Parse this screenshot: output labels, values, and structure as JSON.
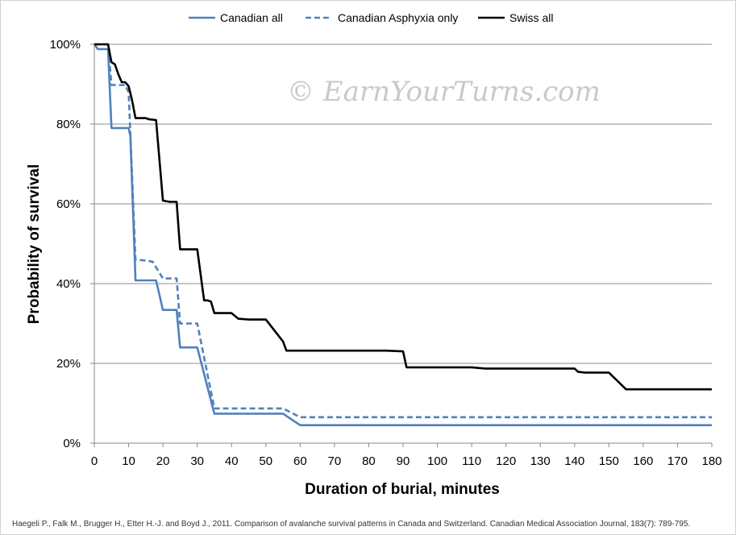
{
  "chart_data": {
    "type": "line",
    "title": "",
    "xlabel": "Duration of burial, minutes",
    "ylabel": "Probability of survival",
    "xlim": [
      0,
      180
    ],
    "ylim": [
      0,
      100
    ],
    "x_ticks": [
      0,
      10,
      20,
      30,
      40,
      50,
      60,
      70,
      80,
      90,
      100,
      110,
      120,
      130,
      140,
      150,
      160,
      170,
      180
    ],
    "y_ticks": [
      0,
      20,
      40,
      60,
      80,
      100
    ],
    "y_tick_labels": [
      "0%",
      "20%",
      "40%",
      "60%",
      "80%",
      "100%"
    ],
    "grid": "horizontal",
    "legend_position": "top",
    "series": [
      {
        "name": "Canadian all",
        "color": "#4f81bd",
        "style": "solid",
        "points": [
          [
            0,
            100
          ],
          [
            1,
            98.8
          ],
          [
            4,
            98.8
          ],
          [
            5,
            79
          ],
          [
            10,
            79
          ],
          [
            10.5,
            77
          ],
          [
            12,
            40.8
          ],
          [
            18,
            40.8
          ],
          [
            20,
            33.4
          ],
          [
            24,
            33.4
          ],
          [
            25,
            24
          ],
          [
            30,
            24
          ],
          [
            35,
            7.4
          ],
          [
            55,
            7.4
          ],
          [
            60,
            4.5
          ],
          [
            180,
            4.5
          ]
        ]
      },
      {
        "name": "Canadian Asphyxia only",
        "color": "#4f81bd",
        "style": "dashed",
        "points": [
          [
            0,
            100
          ],
          [
            4,
            100
          ],
          [
            5,
            89.8
          ],
          [
            9,
            89.8
          ],
          [
            10,
            88
          ],
          [
            12,
            46
          ],
          [
            15,
            45.8
          ],
          [
            17,
            45.5
          ],
          [
            20,
            41.3
          ],
          [
            24,
            41.3
          ],
          [
            25,
            30
          ],
          [
            30,
            30
          ],
          [
            35,
            8.7
          ],
          [
            55,
            8.7
          ],
          [
            60,
            6.5
          ],
          [
            180,
            6.5
          ]
        ]
      },
      {
        "name": "Swiss all",
        "color": "#000000",
        "style": "solid",
        "points": [
          [
            0,
            100
          ],
          [
            4,
            100
          ],
          [
            5,
            95.5
          ],
          [
            6,
            95
          ],
          [
            7,
            92.5
          ],
          [
            8,
            90.5
          ],
          [
            9,
            90.5
          ],
          [
            10,
            89.5
          ],
          [
            11,
            86
          ],
          [
            12,
            81.5
          ],
          [
            15,
            81.5
          ],
          [
            16,
            81.2
          ],
          [
            18,
            81
          ],
          [
            20,
            60.8
          ],
          [
            22,
            60.5
          ],
          [
            24,
            60.5
          ],
          [
            25,
            48.6
          ],
          [
            30,
            48.6
          ],
          [
            32,
            35.8
          ],
          [
            33,
            35.8
          ],
          [
            34,
            35.5
          ],
          [
            35,
            32.6
          ],
          [
            40,
            32.6
          ],
          [
            42,
            31.2
          ],
          [
            45,
            31
          ],
          [
            50,
            31
          ],
          [
            55,
            25.5
          ],
          [
            56,
            23.2
          ],
          [
            85,
            23.2
          ],
          [
            90,
            23
          ],
          [
            91,
            19
          ],
          [
            110,
            19
          ],
          [
            114,
            18.7
          ],
          [
            140,
            18.7
          ],
          [
            141,
            17.9
          ],
          [
            143,
            17.7
          ],
          [
            150,
            17.7
          ],
          [
            155,
            13.5
          ],
          [
            180,
            13.5
          ]
        ]
      }
    ]
  },
  "watermark": "© EarnYourTurns.com",
  "citation": "Haegeli P., Falk M., Brugger H., Etter H.-J. and Boyd J., 2011. Comparison of avalanche survival patterns in Canada and Switzerland. Canadian Medical Association Journal, 183(7): 789-795."
}
